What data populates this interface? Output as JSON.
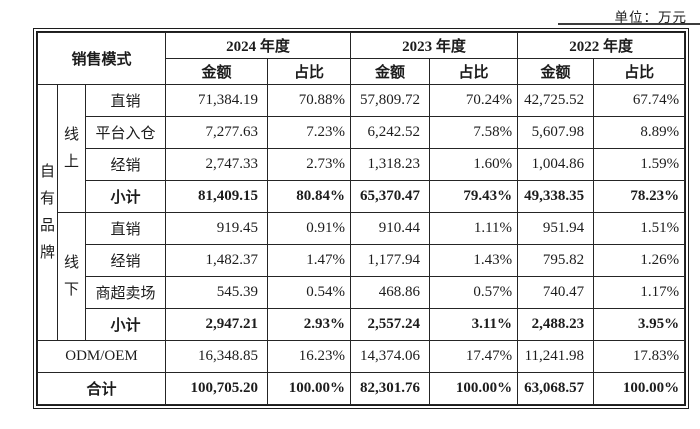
{
  "unit_label": "单位：万元",
  "table": {
    "header": {
      "sales_model_label": "销售模式",
      "years": [
        {
          "label": "2024 年度"
        },
        {
          "label": "2023 年度"
        },
        {
          "label": "2022 年度"
        }
      ],
      "amount_label": "金额",
      "ratio_label": "占比"
    },
    "row_groups": {
      "own_brand_label": "自有品牌",
      "online_label": "线上",
      "offline_label": "线下"
    },
    "online_rows": [
      {
        "label": "直销",
        "a2024": "71,384.19",
        "r2024": "70.88%",
        "a2023": "57,809.72",
        "r2023": "70.24%",
        "a2022": "42,725.52",
        "r2022": "67.74%"
      },
      {
        "label": "平台入仓",
        "a2024": "7,277.63",
        "r2024": "7.23%",
        "a2023": "6,242.52",
        "r2023": "7.58%",
        "a2022": "5,607.98",
        "r2022": "8.89%"
      },
      {
        "label": "经销",
        "a2024": "2,747.33",
        "r2024": "2.73%",
        "a2023": "1,318.23",
        "r2023": "1.60%",
        "a2022": "1,004.86",
        "r2022": "1.59%"
      },
      {
        "label": "小计",
        "a2024": "81,409.15",
        "r2024": "80.84%",
        "a2023": "65,370.47",
        "r2023": "79.43%",
        "a2022": "49,338.35",
        "r2022": "78.23%"
      }
    ],
    "offline_rows": [
      {
        "label": "直销",
        "a2024": "919.45",
        "r2024": "0.91%",
        "a2023": "910.44",
        "r2023": "1.11%",
        "a2022": "951.94",
        "r2022": "1.51%"
      },
      {
        "label": "经销",
        "a2024": "1,482.37",
        "r2024": "1.47%",
        "a2023": "1,177.94",
        "r2023": "1.43%",
        "a2022": "795.82",
        "r2022": "1.26%"
      },
      {
        "label": "商超卖场",
        "a2024": "545.39",
        "r2024": "0.54%",
        "a2023": "468.86",
        "r2023": "0.57%",
        "a2022": "740.47",
        "r2022": "1.17%"
      },
      {
        "label": "小计",
        "a2024": "2,947.21",
        "r2024": "2.93%",
        "a2023": "2,557.24",
        "r2023": "3.11%",
        "a2022": "2,488.23",
        "r2022": "3.95%"
      }
    ],
    "odm_row": {
      "label": "ODM/OEM",
      "a2024": "16,348.85",
      "r2024": "16.23%",
      "a2023": "14,374.06",
      "r2023": "17.47%",
      "a2022": "11,241.98",
      "r2022": "17.83%"
    },
    "total_row": {
      "label": "合计",
      "a2024": "100,705.20",
      "r2024": "100.00%",
      "a2023": "82,301.76",
      "r2023": "100.00%",
      "a2022": "63,068.57",
      "r2022": "100.00%"
    }
  },
  "colors": {
    "text": "#1c1c1c",
    "border": "#252525",
    "background": "#ffffff"
  }
}
